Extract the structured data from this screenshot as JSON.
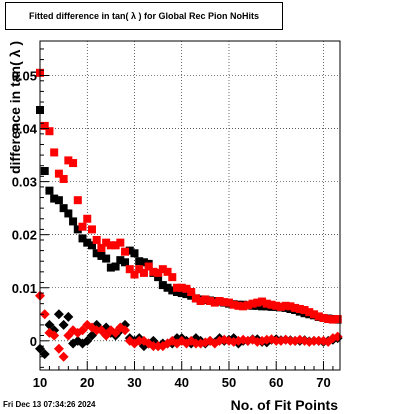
{
  "chart_data": {
    "type": "scatter",
    "title": "Fitted difference in tan( λ ) for Global Rec Pion NoHits",
    "xlabel": "No. of Fit Points",
    "ylabel": "difference in tan( λ )",
    "xlim": [
      10,
      73.5
    ],
    "ylim": [
      -0.0055,
      0.0565
    ],
    "x_ticks": [
      10,
      20,
      30,
      40,
      50,
      60,
      70
    ],
    "x_tick_labels": [
      "10",
      "20",
      "30",
      "40",
      "50",
      "60",
      "70"
    ],
    "y_ticks": [
      0,
      0.01,
      0.02,
      0.03,
      0.04,
      0.05
    ],
    "y_tick_labels": [
      "0",
      "0.01",
      "0.02",
      "0.03",
      "0.04",
      "0.05"
    ],
    "grid": true,
    "series": [
      {
        "color": "#000000",
        "marker": "square",
        "x": [
          10,
          11,
          12,
          13,
          14,
          15,
          16,
          17,
          18,
          19,
          20,
          21,
          22,
          23,
          24,
          25,
          26,
          27,
          28,
          29,
          30,
          31,
          32,
          33,
          34,
          35,
          36,
          37,
          38,
          39,
          40,
          41,
          42,
          43,
          44,
          45,
          46,
          47,
          48,
          49,
          50,
          51,
          52,
          53,
          54,
          55,
          56,
          57,
          58,
          59,
          60,
          61,
          62,
          63,
          64,
          65,
          66,
          67,
          68,
          69,
          70,
          71,
          72,
          73
        ],
        "y": [
          0.0435,
          0.032,
          0.0283,
          0.0268,
          0.0265,
          0.025,
          0.024,
          0.0225,
          0.021,
          0.0193,
          0.0185,
          0.018,
          0.0165,
          0.016,
          0.0155,
          0.0138,
          0.014,
          0.0152,
          0.0148,
          0.017,
          0.0165,
          0.015,
          0.0148,
          0.0145,
          0.0128,
          0.012,
          0.0105,
          0.01,
          0.0095,
          0.0092,
          0.009,
          0.0088,
          0.0085,
          0.008,
          0.0078,
          0.0077,
          0.0076,
          0.0075,
          0.0074,
          0.0072,
          0.007,
          0.0069,
          0.0068,
          0.0068,
          0.0067,
          0.0066,
          0.0066,
          0.0065,
          0.0065,
          0.0064,
          0.0064,
          0.0063,
          0.0062,
          0.006,
          0.0058,
          0.0055,
          0.0052,
          0.005,
          0.0048,
          0.0045,
          0.0043,
          0.0042,
          0.0041,
          0.004
        ]
      },
      {
        "color": "#ff0000",
        "marker": "square",
        "x": [
          10,
          11,
          12,
          13,
          14,
          15,
          16,
          17,
          18,
          19,
          20,
          21,
          22,
          23,
          24,
          25,
          26,
          27,
          28,
          29,
          30,
          31,
          32,
          33,
          34,
          35,
          36,
          37,
          38,
          39,
          40,
          41,
          42,
          43,
          44,
          45,
          46,
          47,
          48,
          49,
          50,
          51,
          52,
          53,
          54,
          55,
          56,
          57,
          58,
          59,
          60,
          61,
          62,
          63,
          64,
          65,
          66,
          67,
          68,
          69,
          70,
          71,
          72,
          73
        ],
        "y": [
          0.0505,
          0.0405,
          0.0395,
          0.0355,
          0.0315,
          0.0305,
          0.034,
          0.0335,
          0.0265,
          0.0215,
          0.023,
          0.021,
          0.019,
          0.0175,
          0.0185,
          0.018,
          0.018,
          0.0185,
          0.0168,
          0.0135,
          0.0125,
          0.0135,
          0.0128,
          0.014,
          0.013,
          0.0128,
          0.0135,
          0.013,
          0.012,
          0.01,
          0.01,
          0.0098,
          0.0092,
          0.008,
          0.0075,
          0.0078,
          0.0075,
          0.0072,
          0.0075,
          0.0073,
          0.0072,
          0.0068,
          0.0066,
          0.0065,
          0.0067,
          0.007,
          0.0072,
          0.0074,
          0.007,
          0.0068,
          0.0066,
          0.0064,
          0.0066,
          0.0065,
          0.0062,
          0.006,
          0.0058,
          0.0054,
          0.005,
          0.0046,
          0.0043,
          0.0041,
          0.004,
          0.0041
        ]
      },
      {
        "color": "#000000",
        "marker": "diamond",
        "x": [
          10,
          11,
          12,
          13,
          14,
          15,
          16,
          17,
          18,
          19,
          20,
          21,
          22,
          23,
          24,
          25,
          26,
          27,
          28,
          29,
          30,
          31,
          32,
          33,
          34,
          35,
          36,
          37,
          38,
          39,
          40,
          41,
          42,
          43,
          44,
          45,
          46,
          47,
          48,
          49,
          50,
          51,
          52,
          53,
          54,
          55,
          56,
          57,
          58,
          59,
          60,
          61,
          62,
          63,
          64,
          65,
          66,
          67,
          68,
          69,
          70,
          71,
          72,
          73
        ],
        "y": [
          -0.0015,
          -0.0025,
          0.003,
          0.002,
          0.005,
          0.003,
          0.0045,
          -0.0005,
          0.0,
          -0.0005,
          0.0,
          0.001,
          0.003,
          0.002,
          0.0025,
          0.0015,
          0.001,
          0.002,
          0.003,
          0.0005,
          0.0,
          0.0005,
          -0.001,
          -0.0005,
          0.0,
          -0.001,
          -0.0005,
          -0.0005,
          -0.0005,
          0.0005,
          0.0005,
          0.0,
          -0.0005,
          0.0005,
          0.0,
          -0.0005,
          0.0,
          -0.0003,
          0.0005,
          0.0,
          0.0002,
          0.0005,
          -0.0005,
          0.0,
          0.0,
          0.0003,
          0.0003,
          -0.0002,
          -0.0003,
          0.0002,
          0.0003,
          0.0001,
          0.0002,
          0.0001,
          0.0,
          0.0,
          0.0001,
          -0.0001,
          0.0,
          0.0,
          -0.0002,
          0.0,
          0.0002,
          0.0005
        ]
      },
      {
        "color": "#ff0000",
        "marker": "diamond",
        "x": [
          10,
          11,
          12,
          13,
          14,
          15,
          16,
          17,
          18,
          19,
          20,
          21,
          22,
          23,
          24,
          25,
          26,
          27,
          28,
          29,
          30,
          31,
          32,
          33,
          34,
          35,
          36,
          37,
          38,
          39,
          40,
          41,
          42,
          43,
          44,
          45,
          46,
          47,
          48,
          49,
          50,
          51,
          52,
          53,
          54,
          55,
          56,
          57,
          58,
          59,
          60,
          61,
          62,
          63,
          64,
          65,
          66,
          67,
          68,
          69,
          70,
          71,
          72,
          73
        ],
        "y": [
          0.0085,
          0.005,
          0.0015,
          0.001,
          -0.0015,
          -0.003,
          0.001,
          0.002,
          0.0015,
          0.002,
          0.003,
          0.0025,
          0.002,
          0.002,
          0.001,
          0.002,
          0.0015,
          0.0025,
          0.002,
          0.0,
          -0.0005,
          0.0,
          0.0,
          -0.0005,
          -0.001,
          -0.001,
          -0.001,
          -0.0005,
          0.0,
          -0.0005,
          0.0,
          -0.0005,
          0.0,
          -0.0005,
          -0.0005,
          -0.0003,
          0.0,
          -0.0005,
          0.0,
          0.0002,
          0.0,
          -0.0002,
          0.0,
          0.0002,
          0.0,
          0.0002,
          -0.0002,
          0.0,
          0.0002,
          0.0003,
          0.0,
          0.0,
          0.0002,
          0.0,
          0.0,
          0.0002,
          0.0,
          -0.0002,
          0.0,
          0.0,
          0.0,
          -0.0002,
          0.0005,
          0.0008
        ]
      }
    ]
  },
  "footer": {
    "timestamp": "Fri Dec 13 07:34:26 2024"
  }
}
